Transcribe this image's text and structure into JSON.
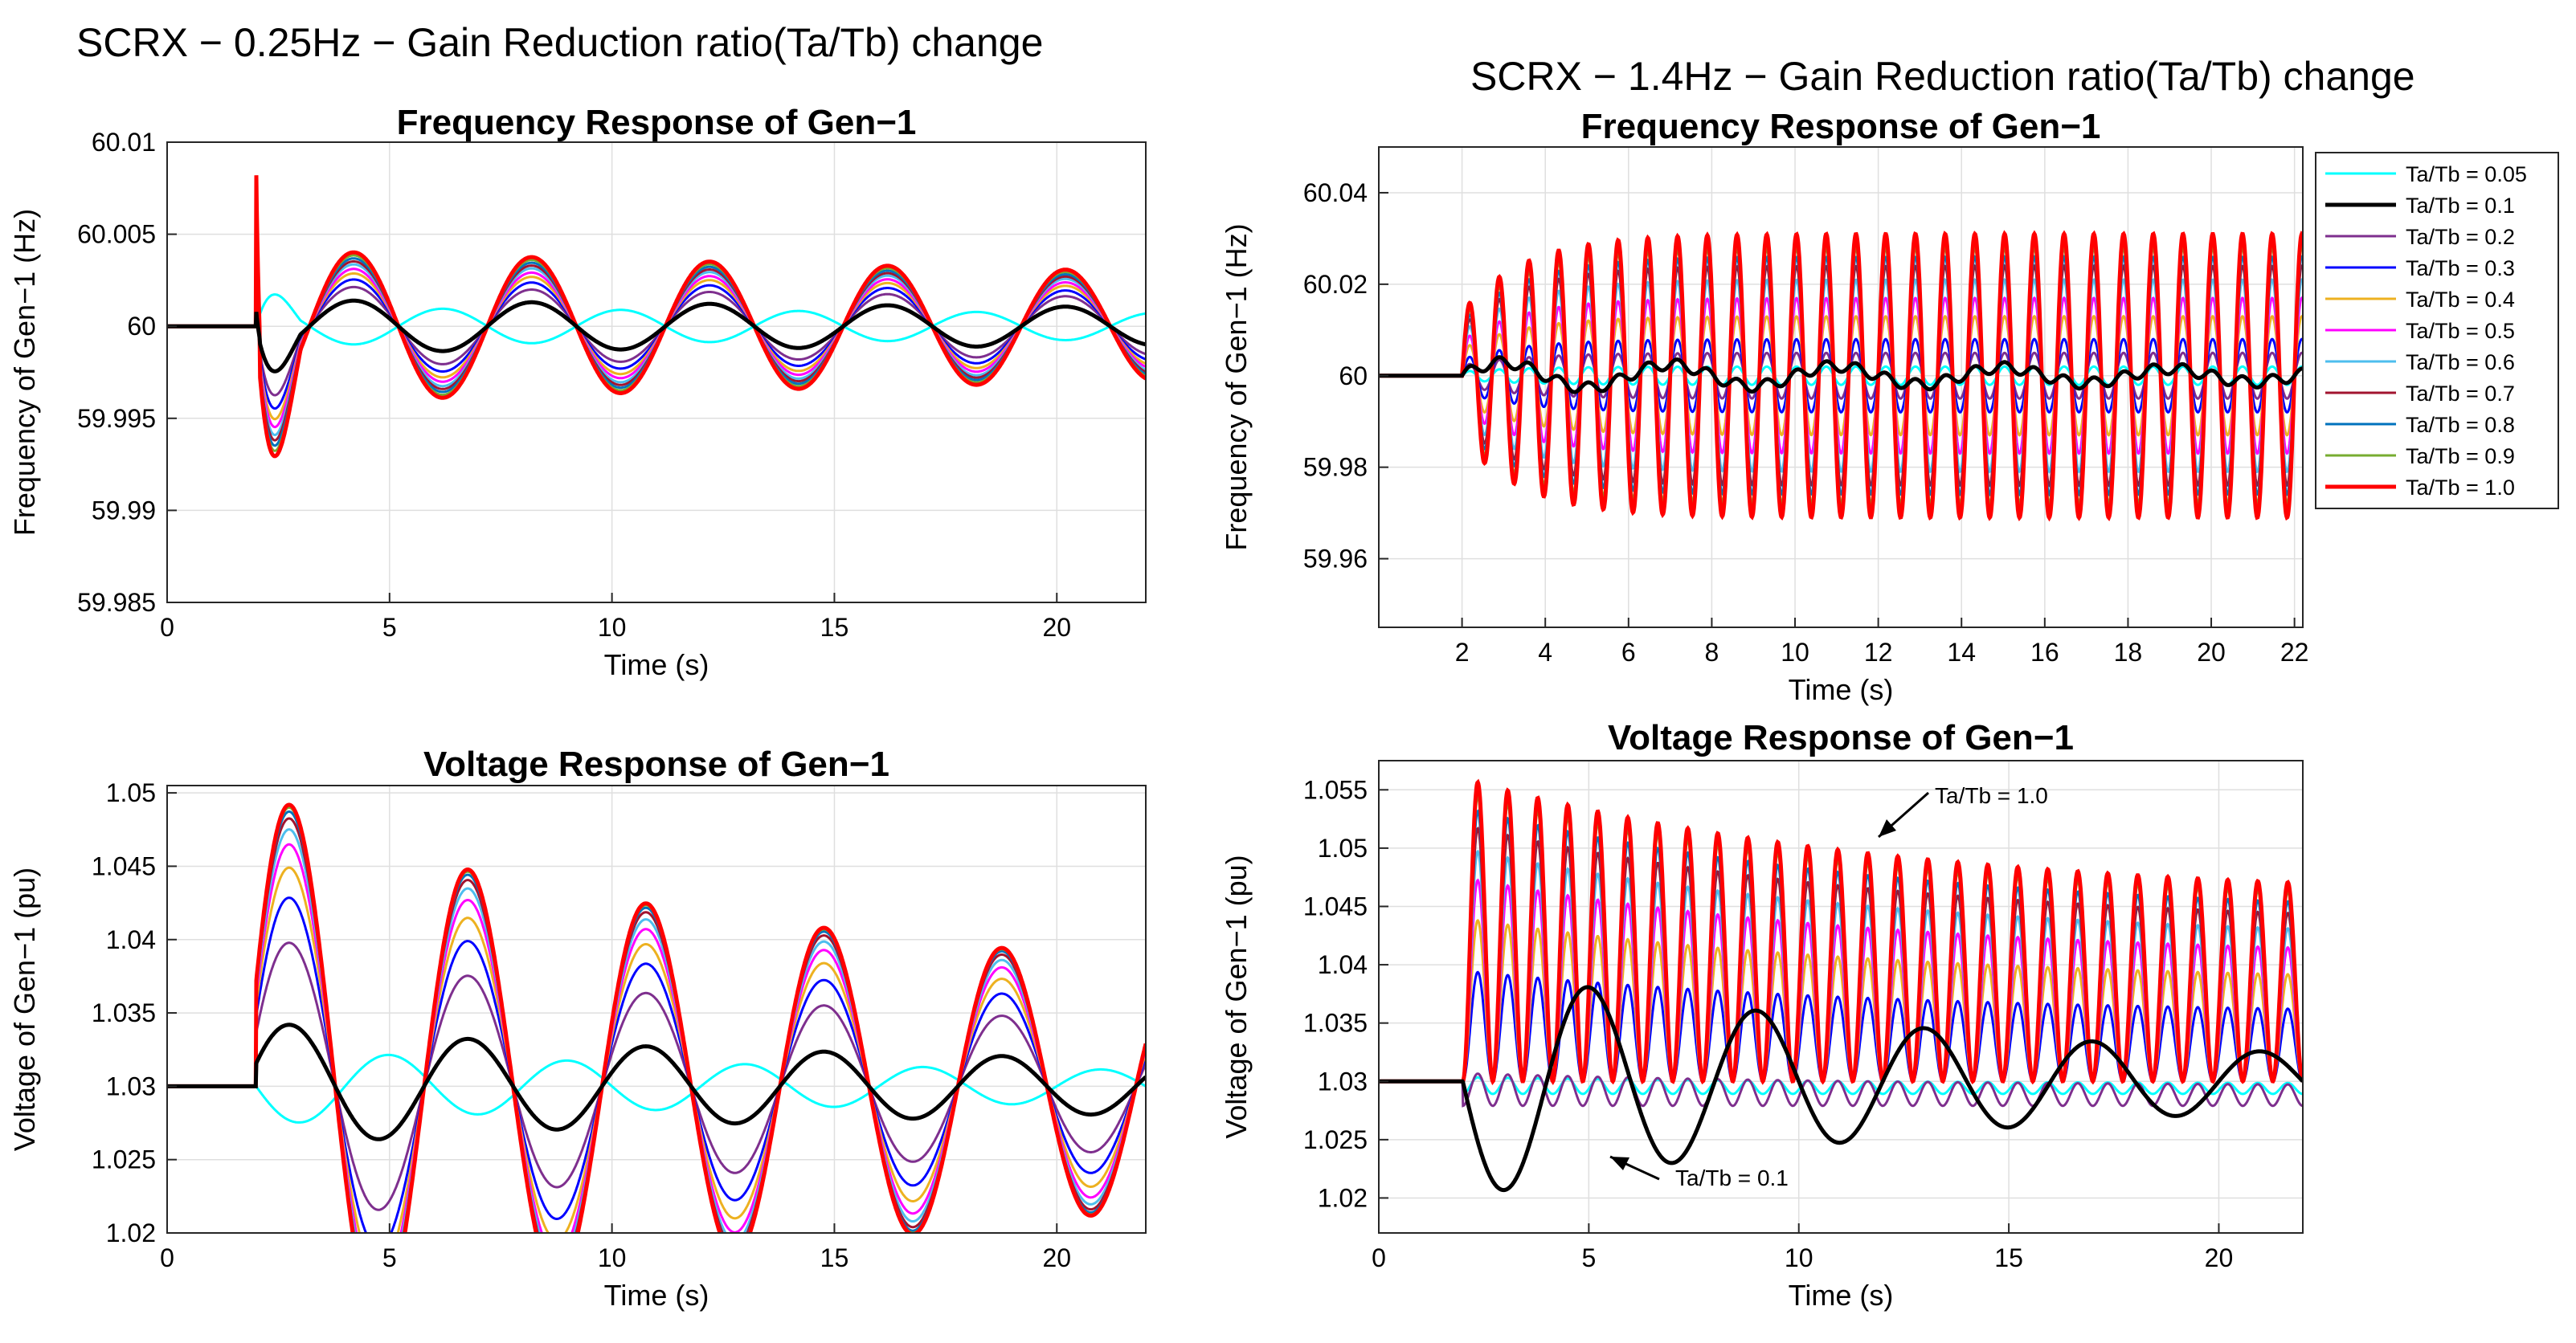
{
  "left_group": {
    "title": "SCRX − 0.25Hz − Gain Reduction ratio(Ta/Tb) change"
  },
  "right_group": {
    "title": "SCRX − 1.4Hz − Gain Reduction ratio(Ta/Tb) change"
  },
  "legend": {
    "placement": "right of top-right panel",
    "entries": [
      {
        "label": "Ta/Tb = 0.05",
        "color": "#00FFFF"
      },
      {
        "label": "Ta/Tb = 0.1",
        "color": "#000000"
      },
      {
        "label": "Ta/Tb = 0.2",
        "color": "#7E2F8E"
      },
      {
        "label": "Ta/Tb = 0.3",
        "color": "#0000FF"
      },
      {
        "label": "Ta/Tb = 0.4",
        "color": "#EDB120"
      },
      {
        "label": "Ta/Tb = 0.5",
        "color": "#FF00FF"
      },
      {
        "label": "Ta/Tb = 0.6",
        "color": "#4DBEEE"
      },
      {
        "label": "Ta/Tb = 0.7",
        "color": "#A2142F"
      },
      {
        "label": "Ta/Tb = 0.8",
        "color": "#0072BD"
      },
      {
        "label": "Ta/Tb = 0.9",
        "color": "#77AC30"
      },
      {
        "label": "Ta/Tb = 1.0",
        "color": "#FF0000"
      }
    ]
  },
  "annotations": {
    "upper_arrow": "Ta/Tb = 1.0",
    "lower_arrow": "Ta/Tb = 0.1"
  },
  "chart_data": [
    {
      "id": "freq_025",
      "type": "line",
      "title": "Frequency Response of Gen−1",
      "xlabel": "Time (s)",
      "ylabel": "Frequency of Gen−1 (Hz)",
      "xlim": [
        0,
        22
      ],
      "ylim": [
        59.985,
        60.01
      ],
      "xticks": [
        0,
        5,
        10,
        15,
        20
      ],
      "xtick_labels": [
        "0",
        "5",
        "10",
        "15",
        "20"
      ],
      "yticks": [
        59.985,
        59.99,
        59.995,
        60,
        60.005,
        60.01
      ],
      "ytick_labels": [
        "59.985",
        "59.99",
        "59.995",
        "60",
        "60.005",
        "60.01"
      ],
      "grid": true,
      "osc_freq_hz": 0.25,
      "event_time_s": 2,
      "baseline": 60,
      "series": [
        {
          "name": "Ta/Tb = 0.05",
          "amplitude": 0.0012
        },
        {
          "name": "Ta/Tb = 0.1",
          "amplitude": 0.0017
        },
        {
          "name": "Ta/Tb = 0.2",
          "amplitude": 0.0026
        },
        {
          "name": "Ta/Tb = 0.3",
          "amplitude": 0.0031
        },
        {
          "name": "Ta/Tb = 0.4",
          "amplitude": 0.0035
        },
        {
          "name": "Ta/Tb = 0.5",
          "amplitude": 0.0038
        },
        {
          "name": "Ta/Tb = 0.6",
          "amplitude": 0.0041
        },
        {
          "name": "Ta/Tb = 0.7",
          "amplitude": 0.0043
        },
        {
          "name": "Ta/Tb = 0.8",
          "amplitude": 0.0045
        },
        {
          "name": "Ta/Tb = 0.9",
          "amplitude": 0.0047
        },
        {
          "name": "Ta/Tb = 1.0",
          "amplitude": 0.0049
        }
      ]
    },
    {
      "id": "volt_025",
      "type": "line",
      "title": "Voltage Response of Gen−1",
      "xlabel": "Time (s)",
      "ylabel": "Voltage of Gen−1 (pu)",
      "xlim": [
        0,
        22
      ],
      "ylim": [
        1.02,
        1.0505
      ],
      "xticks": [
        0,
        5,
        10,
        15,
        20
      ],
      "xtick_labels": [
        "0",
        "5",
        "10",
        "15",
        "20"
      ],
      "yticks": [
        1.02,
        1.025,
        1.03,
        1.035,
        1.04,
        1.045,
        1.05
      ],
      "ytick_labels": [
        "1.02",
        "1.025",
        "1.03",
        "1.035",
        "1.04",
        "1.045",
        "1.05"
      ],
      "grid": true,
      "osc_freq_hz": 0.25,
      "event_time_s": 2,
      "baseline": 1.03,
      "series": [
        {
          "name": "Ta/Tb = 0.05",
          "amplitude": 0.0027
        },
        {
          "name": "Ta/Tb = 0.1",
          "amplitude": 0.0045
        },
        {
          "name": "Ta/Tb = 0.2",
          "amplitude": 0.0105
        },
        {
          "name": "Ta/Tb = 0.3",
          "amplitude": 0.0138
        },
        {
          "name": "Ta/Tb = 0.4",
          "amplitude": 0.016
        },
        {
          "name": "Ta/Tb = 0.5",
          "amplitude": 0.0177
        },
        {
          "name": "Ta/Tb = 0.6",
          "amplitude": 0.0188
        },
        {
          "name": "Ta/Tb = 0.7",
          "amplitude": 0.0196
        },
        {
          "name": "Ta/Tb = 0.8",
          "amplitude": 0.0201
        },
        {
          "name": "Ta/Tb = 0.9",
          "amplitude": 0.0204
        },
        {
          "name": "Ta/Tb = 1.0",
          "amplitude": 0.0206
        }
      ]
    },
    {
      "id": "freq_14",
      "type": "line",
      "title": "Frequency Response of Gen−1",
      "xlabel": "Time (s)",
      "ylabel": "Frequency of Gen−1 (Hz)",
      "xlim": [
        0,
        22.2
      ],
      "ylim": [
        59.945,
        60.05
      ],
      "xticks": [
        2,
        4,
        6,
        8,
        10,
        12,
        14,
        16,
        18,
        20,
        22
      ],
      "xtick_labels": [
        "2",
        "4",
        "6",
        "8",
        "10",
        "12",
        "14",
        "16",
        "18",
        "20",
        "22"
      ],
      "yticks": [
        59.96,
        59.98,
        60,
        60.02,
        60.04
      ],
      "ytick_labels": [
        "59.96",
        "59.98",
        "60",
        "60.02",
        "60.04"
      ],
      "grid": true,
      "osc_freq_hz": 1.4,
      "event_time_s": 2,
      "baseline": 60,
      "series": [
        {
          "name": "Ta/Tb = 0.05",
          "amplitude": 0.002
        },
        {
          "name": "Ta/Tb = 0.1",
          "amplitude": 0.003
        },
        {
          "name": "Ta/Tb = 0.2",
          "amplitude": 0.005
        },
        {
          "name": "Ta/Tb = 0.3",
          "amplitude": 0.008
        },
        {
          "name": "Ta/Tb = 0.4",
          "amplitude": 0.013
        },
        {
          "name": "Ta/Tb = 0.5",
          "amplitude": 0.017
        },
        {
          "name": "Ta/Tb = 0.6",
          "amplitude": 0.021
        },
        {
          "name": "Ta/Tb = 0.7",
          "amplitude": 0.024
        },
        {
          "name": "Ta/Tb = 0.8",
          "amplitude": 0.026
        },
        {
          "name": "Ta/Tb = 0.9",
          "amplitude": 0.028
        },
        {
          "name": "Ta/Tb = 1.0",
          "amplitude": 0.031
        }
      ]
    },
    {
      "id": "volt_14",
      "type": "line",
      "title": "Voltage Response of Gen−1",
      "xlabel": "Time (s)",
      "ylabel": "Voltage of Gen−1 (pu)",
      "xlim": [
        0,
        22
      ],
      "ylim": [
        1.017,
        1.0575
      ],
      "xticks": [
        0,
        5,
        10,
        15,
        20
      ],
      "xtick_labels": [
        "0",
        "5",
        "10",
        "15",
        "20"
      ],
      "yticks": [
        1.02,
        1.025,
        1.03,
        1.035,
        1.04,
        1.045,
        1.05,
        1.055
      ],
      "ytick_labels": [
        "1.02",
        "1.025",
        "1.03",
        "1.035",
        "1.04",
        "1.045",
        "1.05",
        "1.055"
      ],
      "grid": true,
      "osc_freq_hz": 1.4,
      "event_time_s": 2,
      "baseline": 1.03,
      "series": [
        {
          "name": "Ta/Tb = 0.05",
          "amplitude": 0.0018
        },
        {
          "name": "Ta/Tb = 0.1",
          "amplitude": 0.01
        },
        {
          "name": "Ta/Tb = 0.2",
          "amplitude": 0.0035
        },
        {
          "name": "Ta/Tb = 0.3",
          "amplitude": 0.0095
        },
        {
          "name": "Ta/Tb = 0.4",
          "amplitude": 0.014
        },
        {
          "name": "Ta/Tb = 0.5",
          "amplitude": 0.0175
        },
        {
          "name": "Ta/Tb = 0.6",
          "amplitude": 0.02
        },
        {
          "name": "Ta/Tb = 0.7",
          "amplitude": 0.022
        },
        {
          "name": "Ta/Tb = 0.8",
          "amplitude": 0.0235
        },
        {
          "name": "Ta/Tb = 0.9",
          "amplitude": 0.0248
        },
        {
          "name": "Ta/Tb = 1.0",
          "amplitude": 0.026
        }
      ]
    }
  ]
}
